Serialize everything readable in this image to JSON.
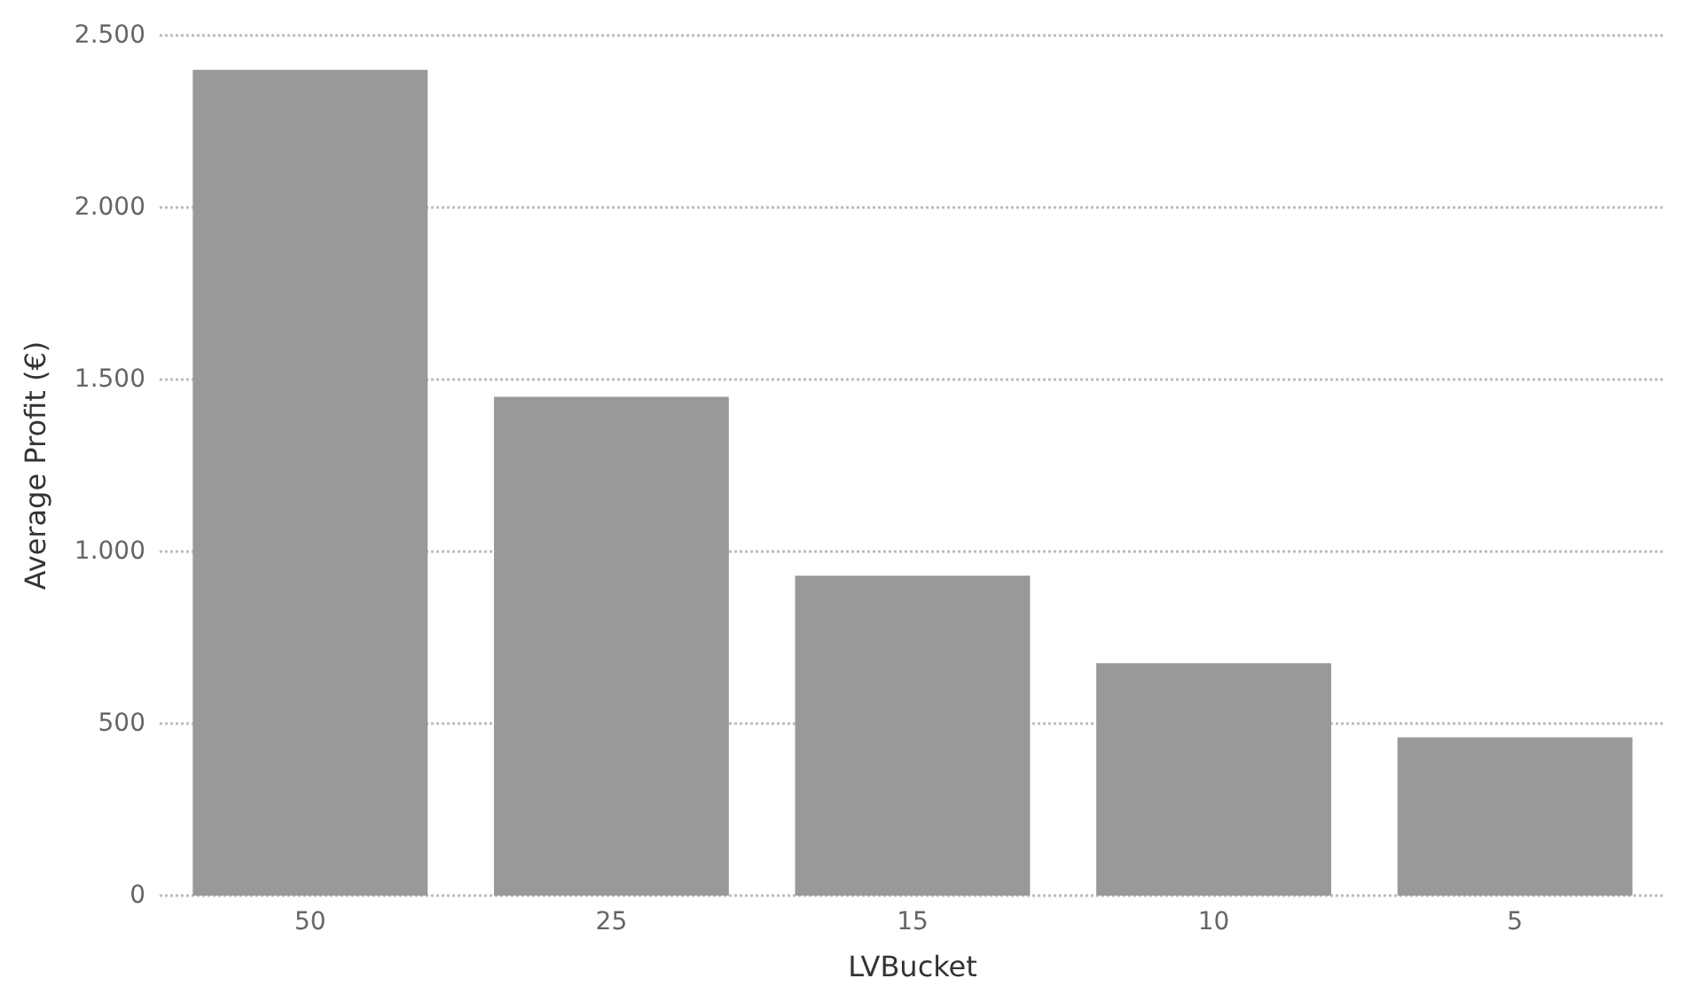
{
  "chart_data": {
    "type": "bar",
    "xlabel": "LVBucket",
    "ylabel": "Average Profit (€)",
    "categories": [
      "50",
      "25",
      "15",
      "10",
      "5"
    ],
    "values": [
      2400,
      1450,
      930,
      675,
      460
    ],
    "color": "#999999",
    "ylim": [
      0,
      2500
    ],
    "yticks": [
      {
        "value": 0,
        "label": "0"
      },
      {
        "value": 500,
        "label": "500"
      },
      {
        "value": 1000,
        "label": "1.000"
      },
      {
        "value": 1500,
        "label": "1.500"
      },
      {
        "value": 2000,
        "label": "2.000"
      },
      {
        "value": 2500,
        "label": "2.500"
      }
    ],
    "grid": "y"
  }
}
